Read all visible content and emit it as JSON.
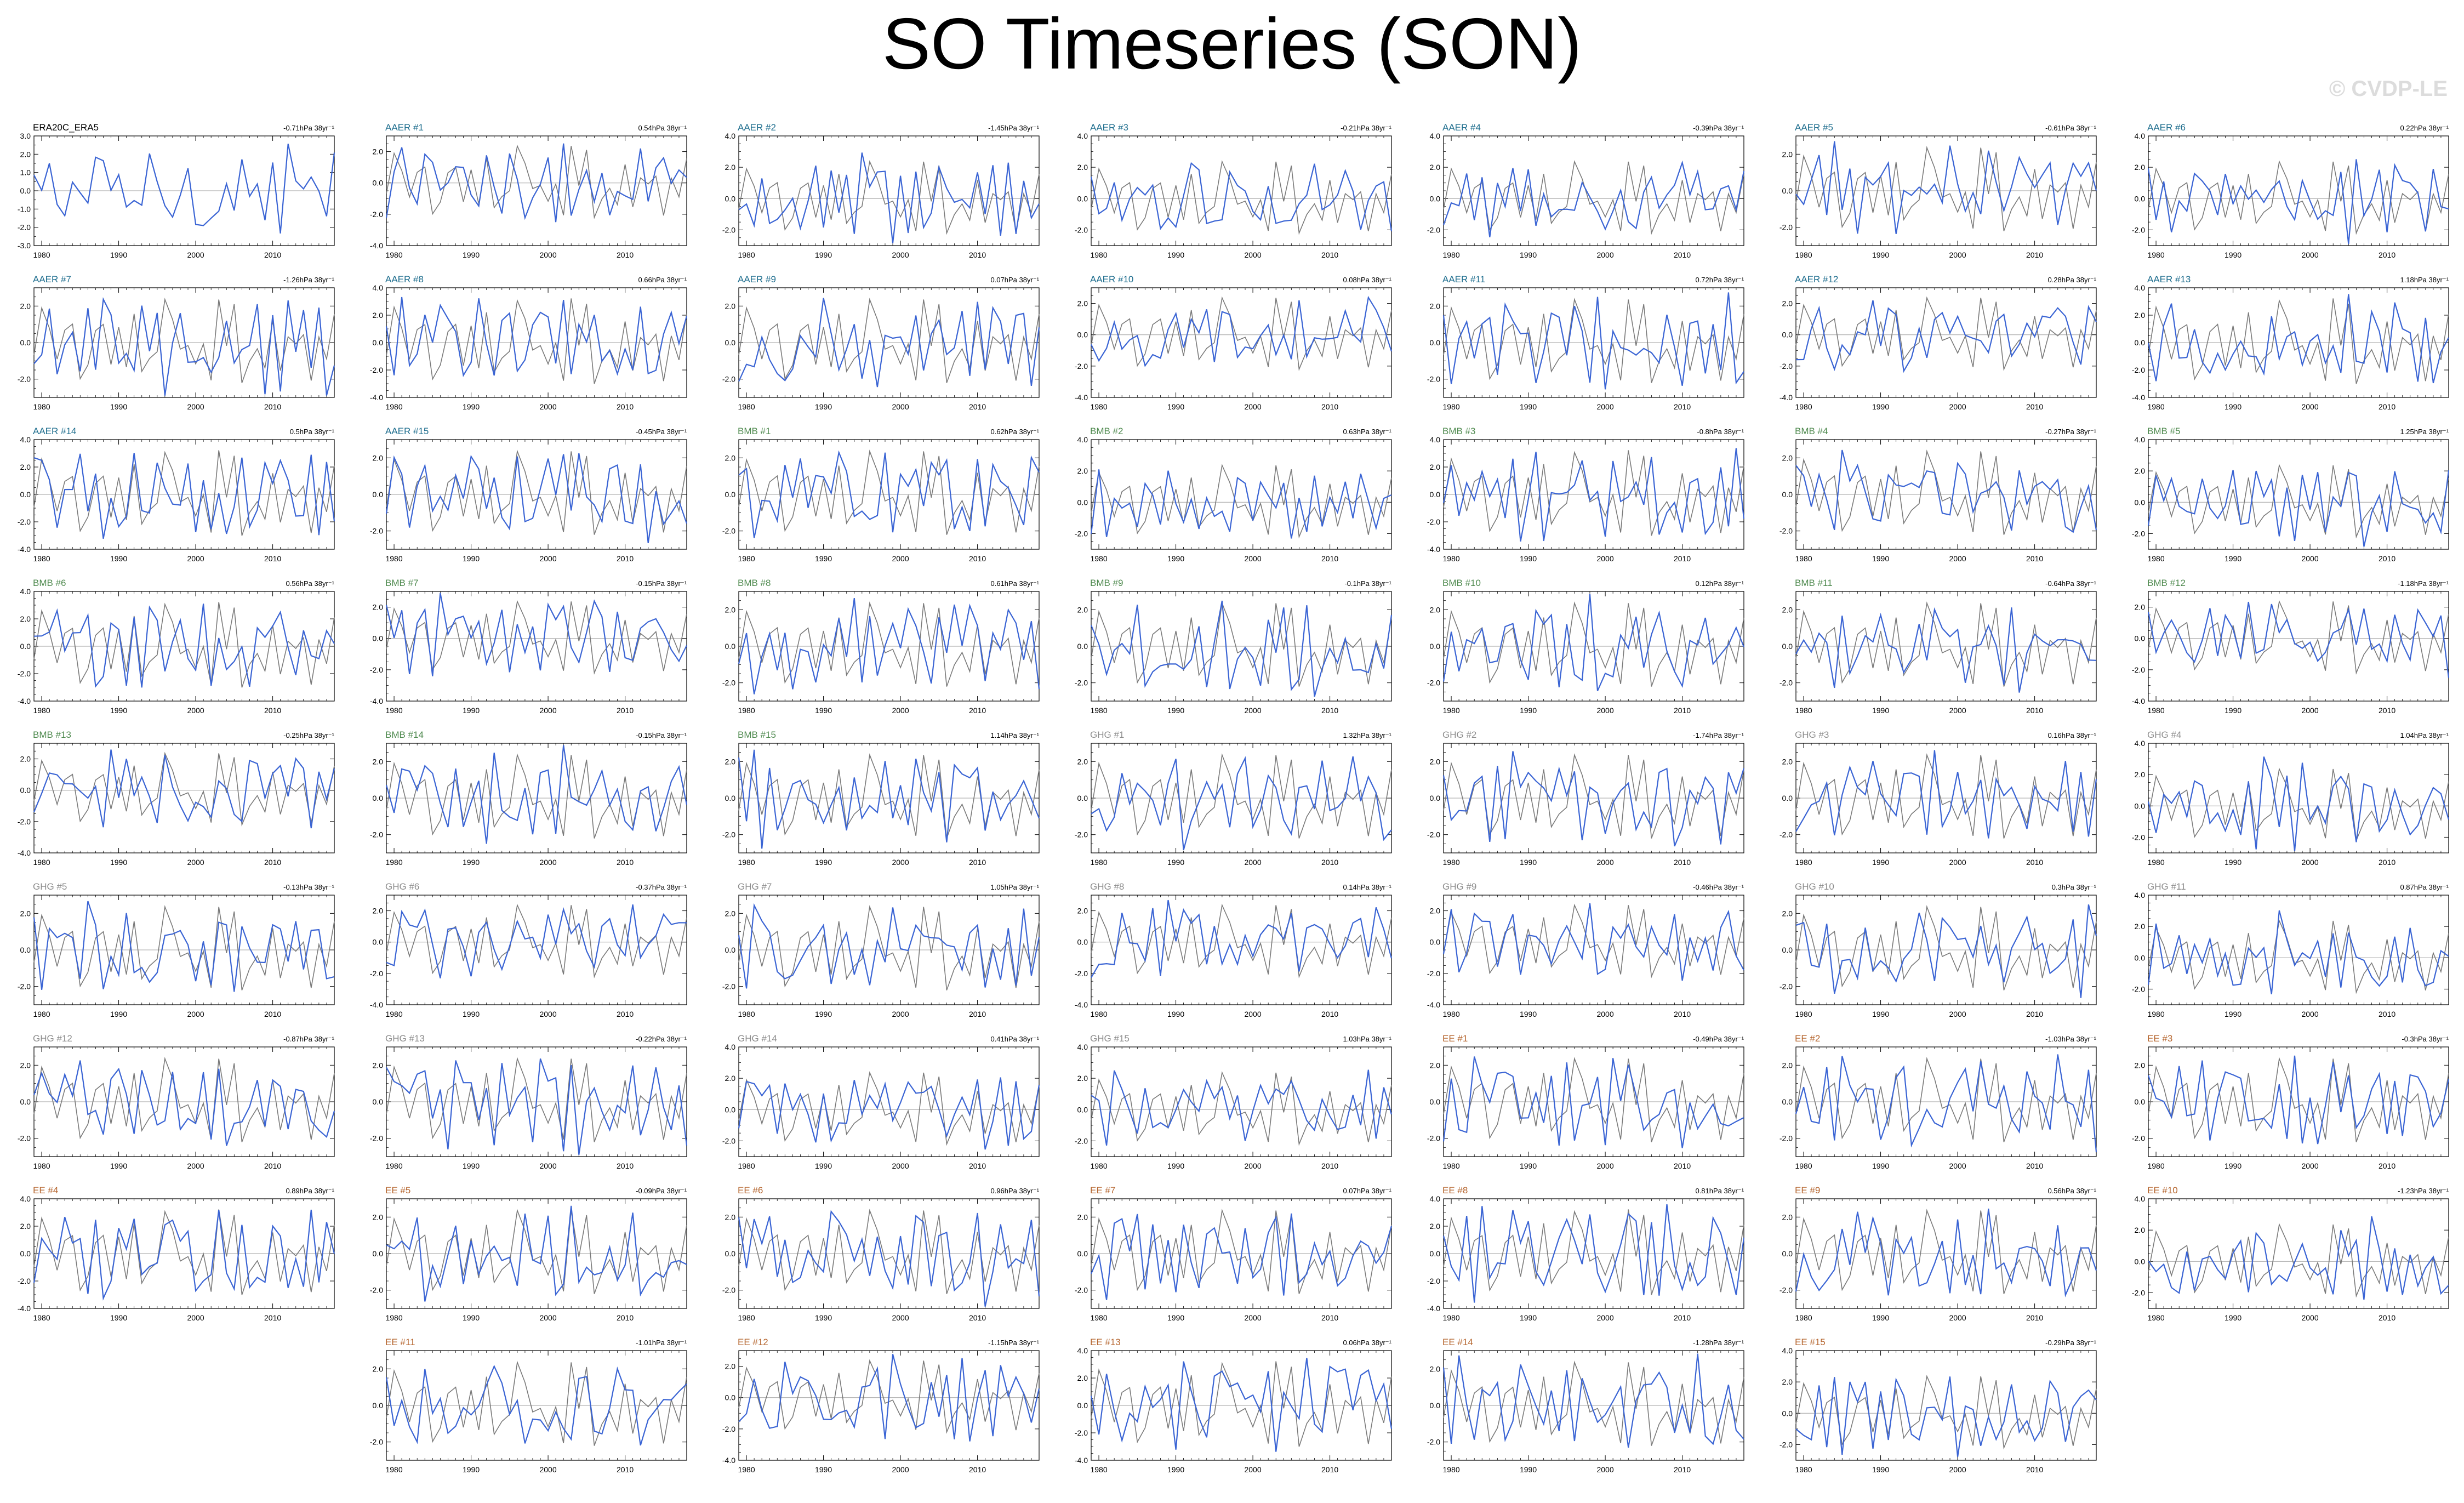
{
  "title": "SO Timeseries (SON)",
  "watermark": "© CVDP-LE",
  "colors": {
    "obs_line": "#3a64d4",
    "ens_line": "#7a7a7a",
    "zero_line": "#a0a0a0",
    "group_AAER": "#1f6e8e",
    "group_BMB": "#4f8a4f",
    "group_GHG": "#8c8c8c",
    "group_EE": "#b5652e",
    "group_OBS": "#000000"
  },
  "chart_data": {
    "type": "line",
    "x_range": [
      1979,
      2018
    ],
    "x_ticks": [
      1980,
      1990,
      2000,
      2010
    ],
    "panels": [
      {
        "label": "ERA20C_ERA5",
        "group": "OBS",
        "trend": "-0.71hPa 38yr⁻¹",
        "y_ticks": [
          3.0,
          2.0,
          1.0,
          0.0,
          -1.0,
          -2.0,
          -3.0
        ],
        "y_range": [
          -3.0,
          3.0
        ]
      },
      {
        "label": "AAER #1",
        "group": "AAER",
        "trend": "0.54hPa 38yr⁻¹",
        "y_ticks": [
          2.0,
          0.0,
          -2.0,
          -4.0
        ],
        "y_range": [
          -4.0,
          3.0
        ]
      },
      {
        "label": "AAER #2",
        "group": "AAER",
        "trend": "-1.45hPa 38yr⁻¹",
        "y_ticks": [
          4.0,
          2.0,
          0.0,
          -2.0
        ],
        "y_range": [
          -3.0,
          4.0
        ]
      },
      {
        "label": "AAER #3",
        "group": "AAER",
        "trend": "-0.21hPa 38yr⁻¹",
        "y_ticks": [
          4.0,
          2.0,
          0.0,
          -2.0
        ],
        "y_range": [
          -3.0,
          4.0
        ]
      },
      {
        "label": "AAER #4",
        "group": "AAER",
        "trend": "-0.39hPa 38yr⁻¹",
        "y_ticks": [
          4.0,
          2.0,
          0.0,
          -2.0
        ],
        "y_range": [
          -3.0,
          4.0
        ]
      },
      {
        "label": "AAER #5",
        "group": "AAER",
        "trend": "-0.61hPa 38yr⁻¹",
        "y_ticks": [
          2.0,
          0.0,
          -2.0
        ],
        "y_range": [
          -3.0,
          3.0
        ]
      },
      {
        "label": "AAER #6",
        "group": "AAER",
        "trend": "0.22hPa 38yr⁻¹",
        "y_ticks": [
          4.0,
          2.0,
          0.0,
          -2.0
        ],
        "y_range": [
          -3.0,
          4.0
        ]
      },
      {
        "label": "AAER #7",
        "group": "AAER",
        "trend": "-1.26hPa 38yr⁻¹",
        "y_ticks": [
          2.0,
          0.0,
          -2.0
        ],
        "y_range": [
          -3.0,
          3.0
        ]
      },
      {
        "label": "AAER #8",
        "group": "AAER",
        "trend": "0.66hPa 38yr⁻¹",
        "y_ticks": [
          4.0,
          2.0,
          0.0,
          -2.0,
          -4.0
        ],
        "y_range": [
          -4.0,
          4.0
        ]
      },
      {
        "label": "AAER #9",
        "group": "AAER",
        "trend": "0.07hPa 38yr⁻¹",
        "y_ticks": [
          2.0,
          0.0,
          -2.0
        ],
        "y_range": [
          -3.0,
          3.0
        ]
      },
      {
        "label": "AAER #10",
        "group": "AAER",
        "trend": "0.08hPa 38yr⁻¹",
        "y_ticks": [
          2.0,
          0.0,
          -2.0,
          -4.0
        ],
        "y_range": [
          -4.0,
          3.0
        ]
      },
      {
        "label": "AAER #11",
        "group": "AAER",
        "trend": "0.72hPa 38yr⁻¹",
        "y_ticks": [
          2.0,
          0.0,
          -2.0
        ],
        "y_range": [
          -3.0,
          3.0
        ]
      },
      {
        "label": "AAER #12",
        "group": "AAER",
        "trend": "0.28hPa 38yr⁻¹",
        "y_ticks": [
          2.0,
          0.0,
          -2.0,
          -4.0
        ],
        "y_range": [
          -4.0,
          3.0
        ]
      },
      {
        "label": "AAER #13",
        "group": "AAER",
        "trend": "1.18hPa 38yr⁻¹",
        "y_ticks": [
          4.0,
          2.0,
          0.0,
          -2.0,
          -4.0
        ],
        "y_range": [
          -4.0,
          4.0
        ]
      },
      {
        "label": "AAER #14",
        "group": "AAER",
        "trend": "0.5hPa 38yr⁻¹",
        "y_ticks": [
          4.0,
          2.0,
          0.0,
          -2.0,
          -4.0
        ],
        "y_range": [
          -4.0,
          4.0
        ]
      },
      {
        "label": "AAER #15",
        "group": "AAER",
        "trend": "-0.45hPa 38yr⁻¹",
        "y_ticks": [
          2.0,
          0.0,
          -2.0
        ],
        "y_range": [
          -3.0,
          3.0
        ]
      },
      {
        "label": "BMB #1",
        "group": "BMB",
        "trend": "0.62hPa 38yr⁻¹",
        "y_ticks": [
          2.0,
          0.0,
          -2.0
        ],
        "y_range": [
          -3.0,
          3.0
        ]
      },
      {
        "label": "BMB #2",
        "group": "BMB",
        "trend": "0.63hPa 38yr⁻¹",
        "y_ticks": [
          4.0,
          2.0,
          0.0,
          -2.0
        ],
        "y_range": [
          -3.0,
          4.0
        ]
      },
      {
        "label": "BMB #3",
        "group": "BMB",
        "trend": "-0.8hPa 38yr⁻¹",
        "y_ticks": [
          4.0,
          2.0,
          0.0,
          -2.0,
          -4.0
        ],
        "y_range": [
          -4.0,
          4.0
        ]
      },
      {
        "label": "BMB #4",
        "group": "BMB",
        "trend": "-0.27hPa 38yr⁻¹",
        "y_ticks": [
          2.0,
          0.0,
          -2.0
        ],
        "y_range": [
          -3.0,
          3.0
        ]
      },
      {
        "label": "BMB #5",
        "group": "BMB",
        "trend": "1.25hPa 38yr⁻¹",
        "y_ticks": [
          4.0,
          2.0,
          0.0,
          -2.0
        ],
        "y_range": [
          -3.0,
          4.0
        ]
      },
      {
        "label": "BMB #6",
        "group": "BMB",
        "trend": "0.56hPa 38yr⁻¹",
        "y_ticks": [
          4.0,
          2.0,
          0.0,
          -2.0,
          -4.0
        ],
        "y_range": [
          -4.0,
          4.0
        ]
      },
      {
        "label": "BMB #7",
        "group": "BMB",
        "trend": "-0.15hPa 38yr⁻¹",
        "y_ticks": [
          2.0,
          0.0,
          -2.0,
          -4.0
        ],
        "y_range": [
          -4.0,
          3.0
        ]
      },
      {
        "label": "BMB #8",
        "group": "BMB",
        "trend": "0.61hPa 38yr⁻¹",
        "y_ticks": [
          2.0,
          0.0,
          -2.0
        ],
        "y_range": [
          -3.0,
          3.0
        ]
      },
      {
        "label": "BMB #9",
        "group": "BMB",
        "trend": "-0.1hPa 38yr⁻¹",
        "y_ticks": [
          2.0,
          0.0,
          -2.0
        ],
        "y_range": [
          -3.0,
          3.0
        ]
      },
      {
        "label": "BMB #10",
        "group": "BMB",
        "trend": "0.12hPa 38yr⁻¹",
        "y_ticks": [
          2.0,
          0.0,
          -2.0
        ],
        "y_range": [
          -3.0,
          3.0
        ]
      },
      {
        "label": "BMB #11",
        "group": "BMB",
        "trend": "-0.64hPa 38yr⁻¹",
        "y_ticks": [
          2.0,
          0.0,
          -2.0
        ],
        "y_range": [
          -3.0,
          3.0
        ]
      },
      {
        "label": "BMB #12",
        "group": "BMB",
        "trend": "-1.18hPa 38yr⁻¹",
        "y_ticks": [
          2.0,
          0.0,
          -2.0,
          -4.0
        ],
        "y_range": [
          -4.0,
          3.0
        ]
      },
      {
        "label": "BMB #13",
        "group": "BMB",
        "trend": "-0.25hPa 38yr⁻¹",
        "y_ticks": [
          2.0,
          0.0,
          -2.0,
          -4.0
        ],
        "y_range": [
          -4.0,
          3.0
        ]
      },
      {
        "label": "BMB #14",
        "group": "BMB",
        "trend": "-0.15hPa 38yr⁻¹",
        "y_ticks": [
          2.0,
          0.0,
          -2.0
        ],
        "y_range": [
          -3.0,
          3.0
        ]
      },
      {
        "label": "BMB #15",
        "group": "BMB",
        "trend": "1.14hPa 38yr⁻¹",
        "y_ticks": [
          2.0,
          0.0,
          -2.0
        ],
        "y_range": [
          -3.0,
          3.0
        ]
      },
      {
        "label": "GHG #1",
        "group": "GHG",
        "trend": "1.32hPa 38yr⁻¹",
        "y_ticks": [
          2.0,
          0.0,
          -2.0
        ],
        "y_range": [
          -3.0,
          3.0
        ]
      },
      {
        "label": "GHG #2",
        "group": "GHG",
        "trend": "-1.74hPa 38yr⁻¹",
        "y_ticks": [
          2.0,
          0.0,
          -2.0
        ],
        "y_range": [
          -3.0,
          3.0
        ]
      },
      {
        "label": "GHG #3",
        "group": "GHG",
        "trend": "0.16hPa 38yr⁻¹",
        "y_ticks": [
          2.0,
          0.0,
          -2.0
        ],
        "y_range": [
          -3.0,
          3.0
        ]
      },
      {
        "label": "GHG #4",
        "group": "GHG",
        "trend": "1.04hPa 38yr⁻¹",
        "y_ticks": [
          4.0,
          2.0,
          0.0,
          -2.0
        ],
        "y_range": [
          -3.0,
          4.0
        ]
      },
      {
        "label": "GHG #5",
        "group": "GHG",
        "trend": "-0.13hPa 38yr⁻¹",
        "y_ticks": [
          2.0,
          0.0,
          -2.0
        ],
        "y_range": [
          -3.0,
          3.0
        ]
      },
      {
        "label": "GHG #6",
        "group": "GHG",
        "trend": "-0.37hPa 38yr⁻¹",
        "y_ticks": [
          2.0,
          0.0,
          -2.0,
          -4.0
        ],
        "y_range": [
          -4.0,
          3.0
        ]
      },
      {
        "label": "GHG #7",
        "group": "GHG",
        "trend": "1.05hPa 38yr⁻¹",
        "y_ticks": [
          2.0,
          0.0,
          -2.0
        ],
        "y_range": [
          -3.0,
          3.0
        ]
      },
      {
        "label": "GHG #8",
        "group": "GHG",
        "trend": "0.14hPa 38yr⁻¹",
        "y_ticks": [
          2.0,
          0.0,
          -2.0,
          -4.0
        ],
        "y_range": [
          -4.0,
          3.0
        ]
      },
      {
        "label": "GHG #9",
        "group": "GHG",
        "trend": "-0.46hPa 38yr⁻¹",
        "y_ticks": [
          2.0,
          0.0,
          -2.0,
          -4.0
        ],
        "y_range": [
          -4.0,
          3.0
        ]
      },
      {
        "label": "GHG #10",
        "group": "GHG",
        "trend": "0.3hPa 38yr⁻¹",
        "y_ticks": [
          2.0,
          0.0,
          -2.0
        ],
        "y_range": [
          -3.0,
          3.0
        ]
      },
      {
        "label": "GHG #11",
        "group": "GHG",
        "trend": "0.87hPa 38yr⁻¹",
        "y_ticks": [
          4.0,
          2.0,
          0.0,
          -2.0
        ],
        "y_range": [
          -3.0,
          4.0
        ]
      },
      {
        "label": "GHG #12",
        "group": "GHG",
        "trend": "-0.87hPa 38yr⁻¹",
        "y_ticks": [
          2.0,
          0.0,
          -2.0
        ],
        "y_range": [
          -3.0,
          3.0
        ]
      },
      {
        "label": "GHG #13",
        "group": "GHG",
        "trend": "-0.22hPa 38yr⁻¹",
        "y_ticks": [
          2.0,
          0.0,
          -2.0
        ],
        "y_range": [
          -3.0,
          3.0
        ]
      },
      {
        "label": "GHG #14",
        "group": "GHG",
        "trend": "0.41hPa 38yr⁻¹",
        "y_ticks": [
          4.0,
          2.0,
          0.0,
          -2.0
        ],
        "y_range": [
          -3.0,
          4.0
        ]
      },
      {
        "label": "GHG #15",
        "group": "GHG",
        "trend": "1.03hPa 38yr⁻¹",
        "y_ticks": [
          4.0,
          2.0,
          0.0,
          -2.0
        ],
        "y_range": [
          -3.0,
          4.0
        ]
      },
      {
        "label": "EE #1",
        "group": "EE",
        "trend": "-0.49hPa 38yr⁻¹",
        "y_ticks": [
          2.0,
          0.0,
          -2.0
        ],
        "y_range": [
          -3.0,
          3.0
        ]
      },
      {
        "label": "EE #2",
        "group": "EE",
        "trend": "-1.03hPa 38yr⁻¹",
        "y_ticks": [
          2.0,
          0.0,
          -2.0
        ],
        "y_range": [
          -3.0,
          3.0
        ]
      },
      {
        "label": "EE #3",
        "group": "EE",
        "trend": "-0.3hPa 38yr⁻¹",
        "y_ticks": [
          2.0,
          0.0,
          -2.0
        ],
        "y_range": [
          -3.0,
          3.0
        ]
      },
      {
        "label": "EE #4",
        "group": "EE",
        "trend": "0.89hPa 38yr⁻¹",
        "y_ticks": [
          4.0,
          2.0,
          0.0,
          -2.0,
          -4.0
        ],
        "y_range": [
          -4.0,
          4.0
        ]
      },
      {
        "label": "EE #5",
        "group": "EE",
        "trend": "-0.09hPa 38yr⁻¹",
        "y_ticks": [
          2.0,
          0.0,
          -2.0
        ],
        "y_range": [
          -3.0,
          3.0
        ]
      },
      {
        "label": "EE #6",
        "group": "EE",
        "trend": "0.96hPa 38yr⁻¹",
        "y_ticks": [
          2.0,
          0.0,
          -2.0
        ],
        "y_range": [
          -3.0,
          3.0
        ]
      },
      {
        "label": "EE #7",
        "group": "EE",
        "trend": "0.07hPa 38yr⁻¹",
        "y_ticks": [
          2.0,
          0.0,
          -2.0
        ],
        "y_range": [
          -3.0,
          3.0
        ]
      },
      {
        "label": "EE #8",
        "group": "EE",
        "trend": "0.81hPa 38yr⁻¹",
        "y_ticks": [
          4.0,
          2.0,
          0.0,
          -2.0,
          -4.0
        ],
        "y_range": [
          -4.0,
          4.0
        ]
      },
      {
        "label": "EE #9",
        "group": "EE",
        "trend": "0.56hPa 38yr⁻¹",
        "y_ticks": [
          2.0,
          0.0,
          -2.0
        ],
        "y_range": [
          -3.0,
          3.0
        ]
      },
      {
        "label": "EE #10",
        "group": "EE",
        "trend": "-1.23hPa 38yr⁻¹",
        "y_ticks": [
          4.0,
          2.0,
          0.0,
          -2.0
        ],
        "y_range": [
          -3.0,
          4.0
        ]
      },
      {
        "label": "EE #11",
        "group": "EE",
        "trend": "-1.01hPa 38yr⁻¹",
        "y_ticks": [
          2.0,
          0.0,
          -2.0
        ],
        "y_range": [
          -3.0,
          3.0
        ]
      },
      {
        "label": "EE #12",
        "group": "EE",
        "trend": "-1.15hPa 38yr⁻¹",
        "y_ticks": [
          2.0,
          0.0,
          -2.0,
          -4.0
        ],
        "y_range": [
          -4.0,
          3.0
        ]
      },
      {
        "label": "EE #13",
        "group": "EE",
        "trend": "0.06hPa 38yr⁻¹",
        "y_ticks": [
          4.0,
          2.0,
          0.0,
          -2.0,
          -4.0
        ],
        "y_range": [
          -4.0,
          4.0
        ]
      },
      {
        "label": "EE #14",
        "group": "EE",
        "trend": "-1.28hPa 38yr⁻¹",
        "y_ticks": [
          2.0,
          0.0,
          -2.0
        ],
        "y_range": [
          -3.0,
          3.0
        ]
      },
      {
        "label": "EE #15",
        "group": "EE",
        "trend": "-0.29hPa 38yr⁻¹",
        "y_ticks": [
          4.0,
          2.0,
          0.0,
          -2.0
        ],
        "y_range": [
          -3.0,
          4.0
        ]
      }
    ]
  }
}
